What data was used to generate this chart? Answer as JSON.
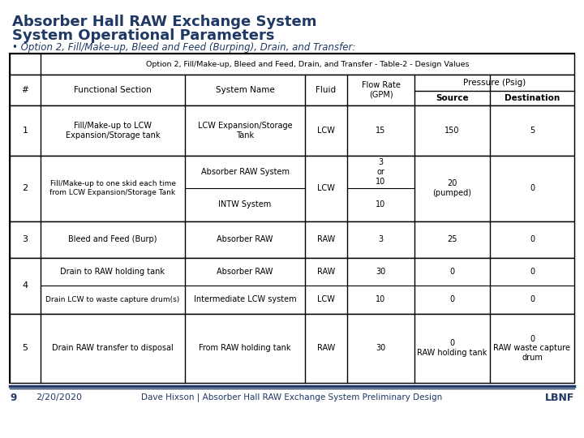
{
  "title1": "Absorber Hall RAW Exchange System",
  "title2": "System Operational Parameters",
  "bullet": "Option 2, Fill/Make-up, Bleed and Feed (Burping), Drain, and Transfer:",
  "table_title": "Option 2, Fill/Make-up, Bleed and Feed, Drain, and Transfer - Table-2 - Design Values",
  "title_color": "#1F3864",
  "footer_page": "9",
  "footer_date": "2/20/2020",
  "footer_center": "Dave Hixson | Absorber Hall RAW Exchange System Preliminary Design",
  "footer_right": "LBNF",
  "col_headers": [
    "#",
    "Functional Section",
    "System Name",
    "Fluid",
    "Flow Rate\n(GPM)",
    "Source",
    "Destination"
  ],
  "rows": [
    {
      "num": "1",
      "functional": "Fill/Make-up to LCW\nExpansion/Storage tank",
      "system": "LCW Expansion/Storage\nTank",
      "fluid": "LCW",
      "flow": "15",
      "source": "150",
      "dest": "5"
    },
    {
      "num": "2",
      "functional": "Fill/Make-up to one skid each time\nfrom LCW Expansion/Storage Tank",
      "system_top": "Absorber RAW System",
      "system_bot": "INTW System",
      "fluid": "LCW",
      "flow_top": "3\nor\n10",
      "flow_bot": "10",
      "source": "20\n(pumped)",
      "dest": "0"
    },
    {
      "num": "3",
      "functional": "Bleed and Feed (Burp)",
      "system": "Absorber RAW",
      "fluid": "RAW",
      "flow": "3",
      "source": "25",
      "dest": "0"
    },
    {
      "num": "4",
      "functional_top": "Drain to RAW holding tank",
      "functional_bot": "Drain LCW to waste capture drum(s)",
      "system_top": "Absorber RAW",
      "system_bot": "Intermediate LCW system",
      "fluid_top": "RAW",
      "fluid_bot": "LCW",
      "flow_top": "30",
      "flow_bot": "10",
      "source_top": "0",
      "source_bot": "0",
      "dest_top": "0",
      "dest_bot": "0"
    },
    {
      "num": "5",
      "functional": "Drain RAW transfer to disposal",
      "system": "From RAW holding tank",
      "fluid": "RAW",
      "flow": "30",
      "source": "0\nRAW holding tank",
      "dest": "0\nRAW waste capture\ndrum"
    }
  ]
}
